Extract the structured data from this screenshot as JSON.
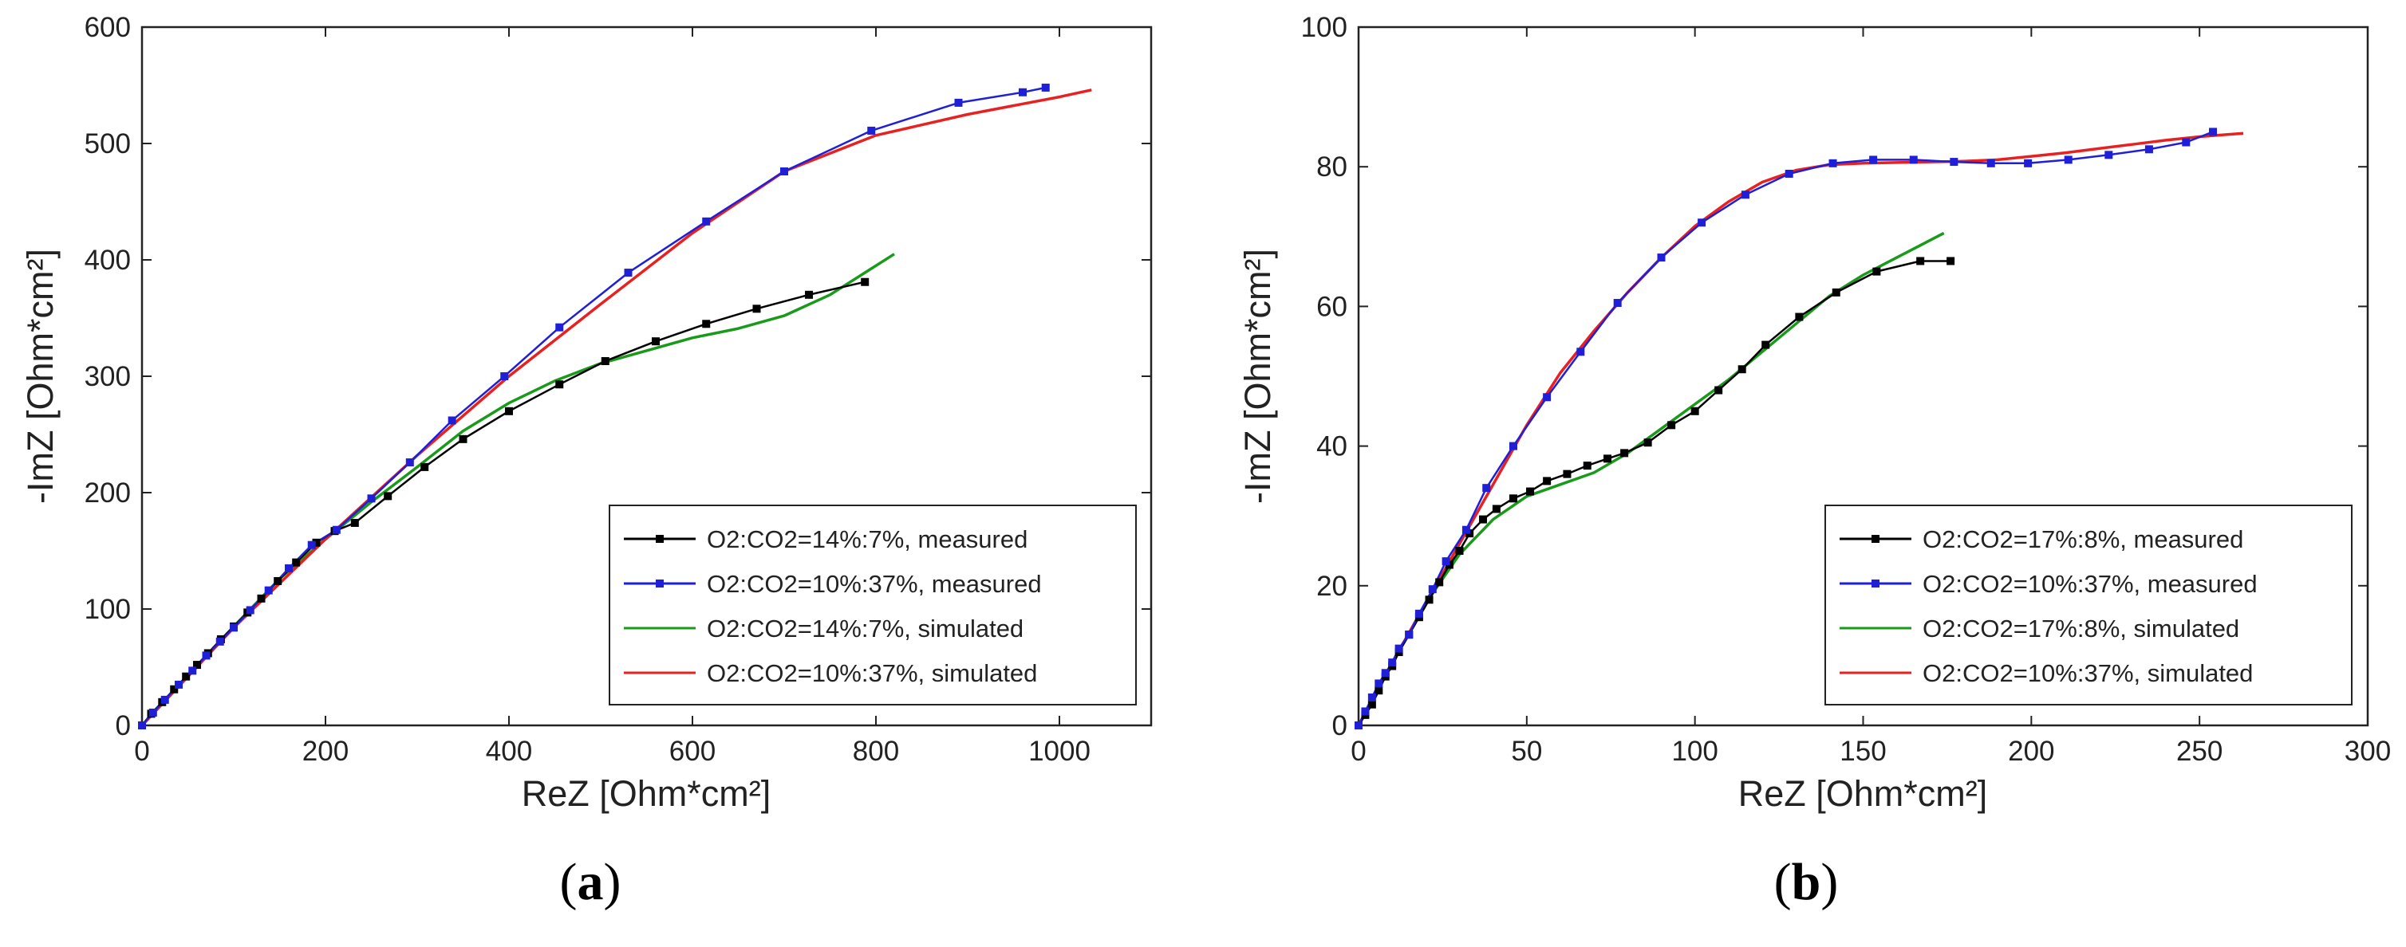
{
  "chart_data": [
    {
      "type": "line",
      "panel_label_open": "(",
      "panel_label_letter": "a",
      "panel_label_close": ")",
      "xlabel": "ReZ [Ohm*cm²]",
      "ylabel": "-ImZ [Ohm*cm²]",
      "xlim": [
        0,
        1100
      ],
      "ylim": [
        0,
        600
      ],
      "xticks": [
        0,
        200,
        400,
        600,
        800,
        1000
      ],
      "yticks": [
        0,
        100,
        200,
        300,
        400,
        500,
        600
      ],
      "legend_position": "bottom-right",
      "series": [
        {
          "name": "O2:CO2=14%:7%, measured",
          "color": "#000000",
          "markers": true,
          "points": [
            [
              0,
              0
            ],
            [
              10,
              10
            ],
            [
              22,
              20
            ],
            [
              35,
              31
            ],
            [
              48,
              42
            ],
            [
              60,
              52
            ],
            [
              72,
              62
            ],
            [
              86,
              74
            ],
            [
              100,
              85
            ],
            [
              115,
              97
            ],
            [
              130,
              109
            ],
            [
              148,
              124
            ],
            [
              168,
              140
            ],
            [
              190,
              157
            ],
            [
              210,
              167
            ],
            [
              232,
              174
            ],
            [
              268,
              197
            ],
            [
              308,
              222
            ],
            [
              350,
              246
            ],
            [
              400,
              270
            ],
            [
              455,
              293
            ],
            [
              505,
              313
            ],
            [
              560,
              330
            ],
            [
              615,
              345
            ],
            [
              670,
              358
            ],
            [
              727,
              370
            ],
            [
              788,
              381
            ]
          ]
        },
        {
          "name": "O2:CO2=10%:37%, measured",
          "color": "#1f1fd8",
          "markers": true,
          "points": [
            [
              0,
              0
            ],
            [
              12,
              11
            ],
            [
              25,
              22
            ],
            [
              40,
              35
            ],
            [
              55,
              47
            ],
            [
              70,
              60
            ],
            [
              85,
              72
            ],
            [
              100,
              84
            ],
            [
              118,
              99
            ],
            [
              138,
              116
            ],
            [
              160,
              135
            ],
            [
              185,
              155
            ],
            [
              212,
              168
            ],
            [
              250,
              195
            ],
            [
              292,
              226
            ],
            [
              338,
              262
            ],
            [
              395,
              300
            ],
            [
              455,
              342
            ],
            [
              530,
              389
            ],
            [
              615,
              433
            ],
            [
              700,
              476
            ],
            [
              795,
              511
            ],
            [
              890,
              535
            ],
            [
              960,
              544
            ],
            [
              985,
              548
            ]
          ]
        },
        {
          "name": "O2:CO2=14%:7%, simulated",
          "color": "#1a9a1a",
          "markers": false,
          "points": [
            [
              0,
              0
            ],
            [
              50,
              42
            ],
            [
              100,
              85
            ],
            [
              150,
              126
            ],
            [
              200,
              160
            ],
            [
              250,
              192
            ],
            [
              300,
              222
            ],
            [
              350,
              253
            ],
            [
              400,
              277
            ],
            [
              450,
              296
            ],
            [
              500,
              311
            ],
            [
              550,
              322
            ],
            [
              600,
              333
            ],
            [
              650,
              341
            ],
            [
              700,
              352
            ],
            [
              750,
              370
            ],
            [
              790,
              390
            ],
            [
              820,
              405
            ]
          ]
        },
        {
          "name": "O2:CO2=10%:37%, simulated",
          "color": "#e82020",
          "markers": false,
          "points": [
            [
              0,
              0
            ],
            [
              100,
              84
            ],
            [
              200,
              160
            ],
            [
              300,
              232
            ],
            [
              400,
              300
            ],
            [
              500,
              362
            ],
            [
              600,
              423
            ],
            [
              700,
              476
            ],
            [
              800,
              507
            ],
            [
              900,
              525
            ],
            [
              1000,
              540
            ],
            [
              1035,
              546
            ]
          ]
        }
      ]
    },
    {
      "type": "line",
      "panel_label_open": "(",
      "panel_label_letter": "b",
      "panel_label_close": ")",
      "xlabel": "ReZ [Ohm*cm²]",
      "ylabel": "-ImZ [Ohm*cm²]",
      "xlim": [
        0,
        300
      ],
      "ylim": [
        0,
        100
      ],
      "xticks": [
        0,
        50,
        100,
        150,
        200,
        250,
        300
      ],
      "yticks": [
        0,
        20,
        40,
        60,
        80,
        100
      ],
      "legend_position": "bottom-right",
      "series": [
        {
          "name": "O2:CO2=17%:8%, measured",
          "color": "#000000",
          "markers": true,
          "points": [
            [
              0,
              0
            ],
            [
              2,
              1.5
            ],
            [
              4,
              3
            ],
            [
              6,
              5
            ],
            [
              8,
              7
            ],
            [
              10,
              8.5
            ],
            [
              12,
              10.5
            ],
            [
              15,
              13
            ],
            [
              18,
              15.5
            ],
            [
              21,
              18
            ],
            [
              24,
              20.5
            ],
            [
              27,
              23
            ],
            [
              30,
              25
            ],
            [
              33,
              27.5
            ],
            [
              37,
              29.5
            ],
            [
              41,
              31
            ],
            [
              46,
              32.5
            ],
            [
              51,
              33.5
            ],
            [
              56,
              35
            ],
            [
              62,
              36
            ],
            [
              68,
              37.2
            ],
            [
              74,
              38.2
            ],
            [
              79,
              39
            ],
            [
              86,
              40.5
            ],
            [
              93,
              43
            ],
            [
              100,
              45
            ],
            [
              107,
              48
            ],
            [
              114,
              51
            ],
            [
              121,
              54.5
            ],
            [
              131,
              58.5
            ],
            [
              142,
              62
            ],
            [
              154,
              65
            ],
            [
              167,
              66.5
            ],
            [
              176,
              66.5
            ]
          ]
        },
        {
          "name": "O2:CO2=10%:37%, measured",
          "color": "#1f1fd8",
          "markers": true,
          "points": [
            [
              0,
              0
            ],
            [
              2,
              2
            ],
            [
              4,
              4
            ],
            [
              6,
              6
            ],
            [
              8,
              7.5
            ],
            [
              10,
              9
            ],
            [
              12,
              11
            ],
            [
              15,
              13
            ],
            [
              18,
              16
            ],
            [
              22,
              19.5
            ],
            [
              26,
              23.5
            ],
            [
              32,
              28
            ],
            [
              38,
              34
            ],
            [
              46,
              40
            ],
            [
              56,
              47
            ],
            [
              66,
              53.5
            ],
            [
              77,
              60.5
            ],
            [
              90,
              67
            ],
            [
              102,
              72
            ],
            [
              115,
              76
            ],
            [
              128,
              79
            ],
            [
              141,
              80.5
            ],
            [
              153,
              81
            ],
            [
              165,
              81
            ],
            [
              177,
              80.7
            ],
            [
              188,
              80.5
            ],
            [
              199,
              80.5
            ],
            [
              211,
              81
            ],
            [
              223,
              81.7
            ],
            [
              235,
              82.5
            ],
            [
              246,
              83.5
            ],
            [
              254,
              85
            ]
          ]
        },
        {
          "name": "O2:CO2=17%:8%, simulated",
          "color": "#1a9a1a",
          "markers": false,
          "points": [
            [
              0,
              0
            ],
            [
              10,
              9
            ],
            [
              20,
              17.5
            ],
            [
              30,
              24.5
            ],
            [
              40,
              29.5
            ],
            [
              50,
              32.8
            ],
            [
              60,
              34.5
            ],
            [
              70,
              36.2
            ],
            [
              80,
              39
            ],
            [
              90,
              42.5
            ],
            [
              100,
              46
            ],
            [
              110,
              49.5
            ],
            [
              120,
              53.5
            ],
            [
              130,
              57.5
            ],
            [
              140,
              61.5
            ],
            [
              150,
              64.5
            ],
            [
              160,
              67
            ],
            [
              170,
              69.5
            ],
            [
              174,
              70.5
            ]
          ]
        },
        {
          "name": "O2:CO2=10%:37%, simulated",
          "color": "#e82020",
          "markers": false,
          "points": [
            [
              0,
              0
            ],
            [
              10,
              9
            ],
            [
              20,
              17.5
            ],
            [
              30,
              26
            ],
            [
              40,
              34.5
            ],
            [
              50,
              43
            ],
            [
              60,
              50.5
            ],
            [
              70,
              56.5
            ],
            [
              80,
              62
            ],
            [
              90,
              67
            ],
            [
              100,
              71.5
            ],
            [
              110,
              75
            ],
            [
              120,
              77.8
            ],
            [
              130,
              79.5
            ],
            [
              140,
              80.3
            ],
            [
              150,
              80.5
            ],
            [
              160,
              80.6
            ],
            [
              170,
              80.7
            ],
            [
              180,
              80.8
            ],
            [
              190,
              81
            ],
            [
              200,
              81.5
            ],
            [
              210,
              82
            ],
            [
              220,
              82.6
            ],
            [
              230,
              83.2
            ],
            [
              240,
              83.8
            ],
            [
              250,
              84.3
            ],
            [
              263,
              84.8
            ]
          ]
        }
      ]
    }
  ]
}
